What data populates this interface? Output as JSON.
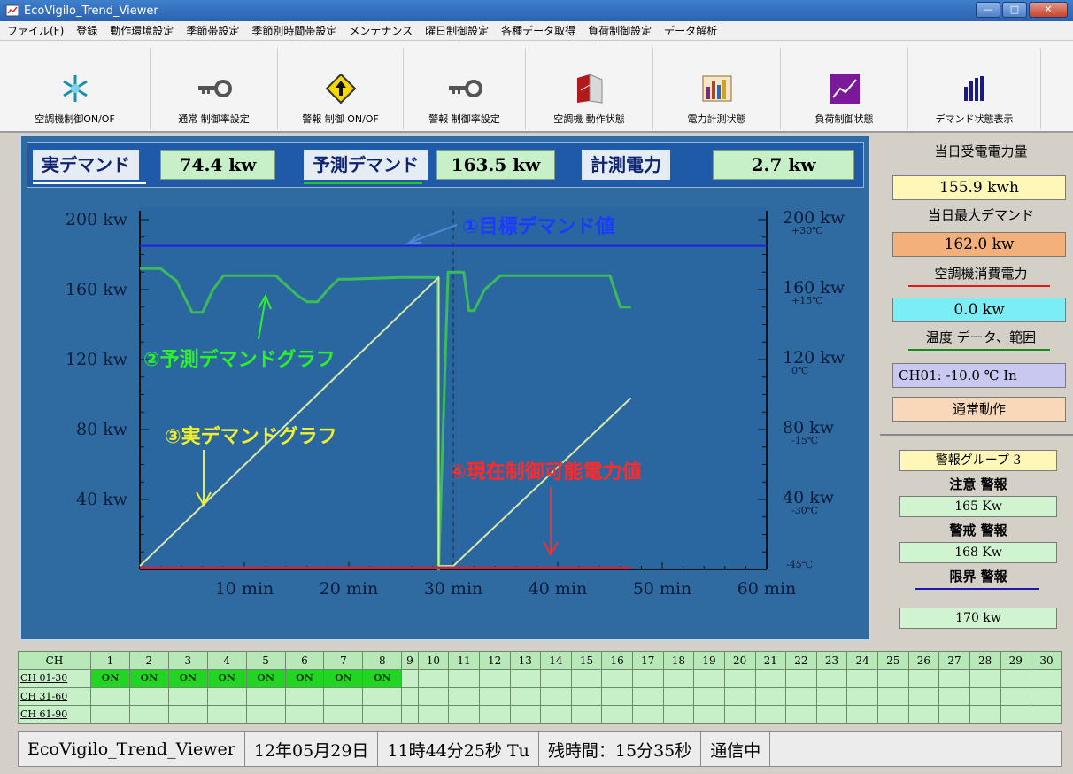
{
  "window": {
    "title": "EcoVigilo_Trend_Viewer"
  },
  "menu": [
    "ファイル(F)",
    "登録",
    "動作環境設定",
    "季節帯設定",
    "季節別時間帯設定",
    "メンテナンス",
    "曜日制御設定",
    "各種データ取得",
    "負荷制御設定",
    "データ解析"
  ],
  "toolbar": [
    {
      "label": "空調機制御ON/OF",
      "icon": "snowflake-icon"
    },
    {
      "label": "通常 制御率設定",
      "icon": "key-icon"
    },
    {
      "label": "警報 制御 ON/OF",
      "icon": "warning-sign-icon"
    },
    {
      "label": "警報 制御率設定",
      "icon": "key-icon"
    },
    {
      "label": "空調機 動作状態",
      "icon": "book-icon"
    },
    {
      "label": "電力計測状態",
      "icon": "bar-chart-icon"
    },
    {
      "label": "負荷制御状態",
      "icon": "line-chart-icon"
    },
    {
      "label": "デマンド状態表示",
      "icon": "signal-bars-icon"
    }
  ],
  "header": {
    "actual_label": "実デマンド",
    "actual_value": "74.4 kw",
    "forecast_label": "予測デマンド",
    "forecast_value": "163.5 kw",
    "measured_label": "計測電力",
    "measured_value": "2.7 kw"
  },
  "chart_data": {
    "type": "line",
    "xlabel": "",
    "ylabel": "",
    "xlim": [
      0,
      60
    ],
    "ylim": [
      0,
      200
    ],
    "x_ticks": [
      "10 min",
      "20 min",
      "30 min",
      "40 min",
      "50 min",
      "60 min"
    ],
    "y_ticks_left": [
      "200 kw",
      "160 kw",
      "120 kw",
      "80 kw",
      "40 kw"
    ],
    "y_ticks_right": [
      {
        "kw": "200 kw",
        "temp": "+30℃"
      },
      {
        "kw": "160 kw",
        "temp": "+15℃"
      },
      {
        "kw": "120 kw",
        "temp": "0℃"
      },
      {
        "kw": "80 kw",
        "temp": "-15℃"
      },
      {
        "kw": "40 kw",
        "temp": "-30℃"
      },
      {
        "kw": "",
        "temp": "-45℃"
      }
    ],
    "series": [
      {
        "color": "#2222dd",
        "x": [
          0,
          60
        ],
        "y": [
          185,
          185
        ]
      },
      {
        "color": "#3bbb5a",
        "x": [
          0,
          2,
          3.5,
          5,
          6,
          7,
          8,
          9,
          10,
          13,
          15,
          16,
          17,
          18,
          19,
          20,
          25,
          28.5,
          28.6,
          29.5,
          31,
          31.5,
          32,
          33,
          34.5,
          35.5,
          36,
          37,
          41,
          43,
          45,
          46,
          47
        ],
        "y": [
          172,
          172,
          165,
          147,
          147,
          160,
          168,
          168,
          168,
          168,
          157,
          153,
          153,
          160,
          166,
          166,
          167,
          167,
          0,
          170,
          170,
          148,
          148,
          160,
          168,
          168,
          168,
          168,
          168,
          168,
          168,
          150,
          150
        ]
      },
      {
        "color": "#d8e8a8",
        "x": [
          0,
          28.6,
          28.6,
          30,
          47
        ],
        "y": [
          2,
          167,
          2,
          2,
          98
        ]
      },
      {
        "color": "#c02a4a",
        "x": [
          0,
          47
        ],
        "y": [
          1,
          1
        ]
      }
    ]
  },
  "annotations": {
    "target": "①目標デマンド値",
    "forecast": "②予測デマンドグラフ",
    "actual": "③実デマンドグラフ",
    "controllable": "④現在制御可能電力値"
  },
  "right_panel": {
    "daily_energy_label": "当日受電電力量",
    "daily_energy_value": "155.9 kwh",
    "daily_max_label": "当日最大デマンド",
    "daily_max_value": "162.0 kw",
    "ac_power_label": "空調機消費電力",
    "ac_power_value": "0.0 kw",
    "temp_label": "温度 データ、範囲",
    "temp_value": "CH01: -10.0 ℃ In",
    "mode_value": "通常動作",
    "alarm_group": "警報グループ 3",
    "caution_label": "注意 警報",
    "caution_value": "165 Kw",
    "warning_label": "警戒 警報",
    "warning_value": "168 Kw",
    "limit_label": "限界 警報",
    "limit_value": "170 kw"
  },
  "channels": {
    "header": "CH",
    "rows": [
      "CH 01-30",
      "CH 31-60",
      "CH 61-90"
    ],
    "on_label": "ON",
    "on_count_row1": 8
  },
  "status": {
    "app": "EcoVigilo_Trend_Viewer",
    "date": "12年05月29日",
    "time": "11時44分25秒 Tu",
    "remaining": "残時間：15分35秒",
    "comm": "通信中"
  }
}
